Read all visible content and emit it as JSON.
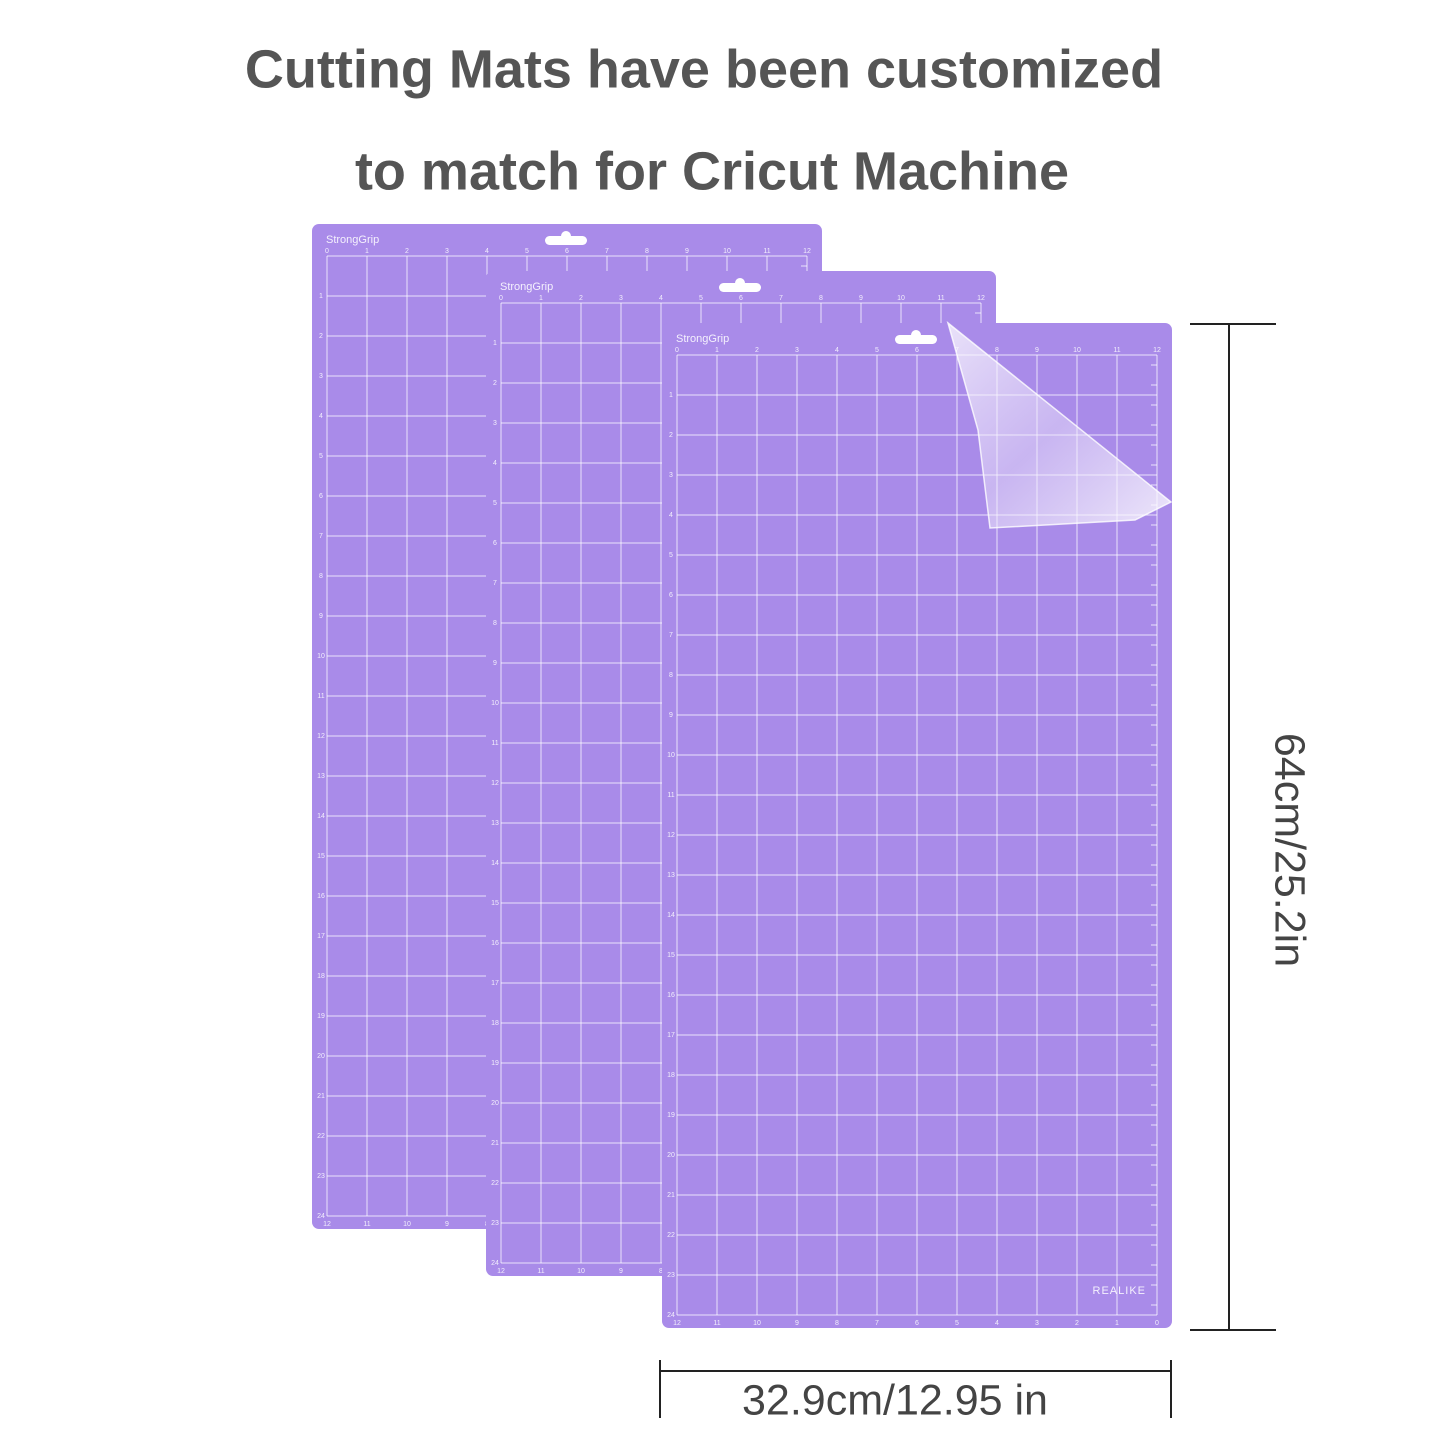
{
  "header": {
    "title_line_1": "Cutting Mats have been customized",
    "title_line_2": "to match for Cricut Machine"
  },
  "mats": [
    {
      "label": "StrongGrip"
    },
    {
      "label": "StrongGrip"
    },
    {
      "label": "StrongGrip",
      "brand": "REALIKE"
    }
  ],
  "ruler": {
    "top": [
      "0",
      "1",
      "2",
      "3",
      "4",
      "5",
      "6",
      "7",
      "8",
      "9",
      "10",
      "11",
      "12"
    ],
    "side": [
      "1",
      "2",
      "3",
      "4",
      "5",
      "6",
      "7",
      "8",
      "9",
      "10",
      "11",
      "12",
      "13",
      "14",
      "15",
      "16",
      "17",
      "18",
      "19",
      "20",
      "21",
      "22",
      "23",
      "24"
    ],
    "bottom": [
      "12",
      "11",
      "10",
      "9",
      "8",
      "7",
      "6",
      "5",
      "4",
      "3",
      "2",
      "1",
      "0"
    ]
  },
  "dimensions": {
    "height": "64cm/25.2in",
    "width": "32.9cm/12.95 in"
  }
}
